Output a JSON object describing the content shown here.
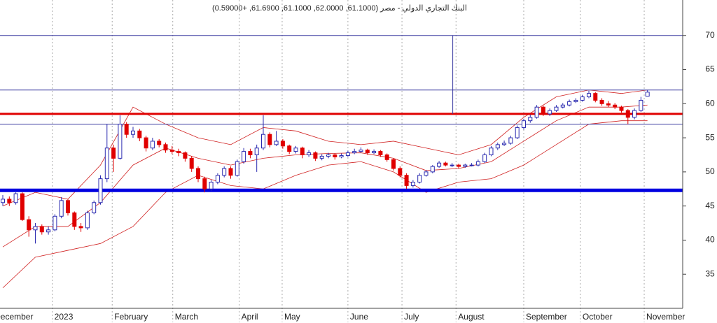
{
  "chart_data": {
    "type": "candlestick",
    "title": "البنك التجاري الدولي - مصر (61.1000, 62.0000, 61.1000, 61.6900, +0.59000)",
    "ylim": [
      30,
      75.2
    ],
    "yticks": [
      35,
      40,
      45,
      50,
      55,
      60,
      65,
      70
    ],
    "xlim": [
      -0.43,
      104.41
    ],
    "xticks": [
      {
        "value": -1.6,
        "label": "December"
      },
      {
        "value": 7.6,
        "label": "2023"
      },
      {
        "value": 16.8,
        "label": "February"
      },
      {
        "value": 26.1,
        "label": "March"
      },
      {
        "value": 36.3,
        "label": "April"
      },
      {
        "value": 42.9,
        "label": "May"
      },
      {
        "value": 53,
        "label": "June"
      },
      {
        "value": 61.3,
        "label": "July"
      },
      {
        "value": 69.6,
        "label": "August"
      },
      {
        "value": 80,
        "label": "September"
      },
      {
        "value": 88.7,
        "label": "October"
      },
      {
        "value": 98.5,
        "label": "November"
      }
    ],
    "up_color": "#2b2bb0",
    "down_color": "#e00000",
    "candles": [
      [
        45.5,
        46.6,
        45.0,
        46
      ],
      [
        46,
        46.4,
        45.0,
        45.5
      ],
      [
        45.5,
        47.0,
        45.2,
        46.8
      ],
      [
        46.8,
        47.0,
        42.8,
        43
      ],
      [
        43,
        43.5,
        40.5,
        41.5
      ],
      [
        41.5,
        42.5,
        39.5,
        42
      ],
      [
        42,
        42.3,
        40.8,
        41.2
      ],
      [
        41.2,
        42,
        40.8,
        41.5
      ],
      [
        41.5,
        43.8,
        41.3,
        43.5
      ],
      [
        43.5,
        46.3,
        43.2,
        45.8
      ],
      [
        45.8,
        46,
        43.6,
        44
      ],
      [
        44,
        44.2,
        41.5,
        42
      ],
      [
        42,
        42.5,
        41.2,
        41.8
      ],
      [
        41.8,
        44.3,
        41.5,
        44
      ],
      [
        44,
        45.8,
        43.8,
        45.5
      ],
      [
        45.5,
        49.5,
        45.2,
        49
      ],
      [
        49,
        57,
        48.5,
        53.5
      ],
      [
        53.5,
        54,
        50,
        52
      ],
      [
        52,
        58.3,
        51.8,
        57
      ],
      [
        57,
        57.3,
        55,
        55.5
      ],
      [
        55.5,
        56.6,
        55,
        56
      ],
      [
        56,
        56.3,
        54.5,
        55
      ],
      [
        55,
        55.3,
        53,
        53.5
      ],
      [
        53.5,
        55,
        53.2,
        54.5
      ],
      [
        54.5,
        54.8,
        53.6,
        54
      ],
      [
        54,
        54.3,
        52.8,
        53.2
      ],
      [
        53.2,
        53.8,
        52.6,
        53
      ],
      [
        53,
        53.4,
        52.3,
        52.8
      ],
      [
        52.8,
        53,
        51.5,
        52
      ],
      [
        52,
        52.3,
        50,
        50.5
      ],
      [
        50.5,
        50.8,
        48.5,
        49
      ],
      [
        49,
        49.3,
        47,
        47.5
      ],
      [
        47.5,
        48.8,
        47.2,
        48.5
      ],
      [
        48.5,
        49.8,
        48.2,
        49.5
      ],
      [
        49.5,
        50.8,
        49.2,
        50.5
      ],
      [
        50.5,
        50.8,
        49,
        49.5
      ],
      [
        49.5,
        51.8,
        49.3,
        51.5
      ],
      [
        51.5,
        53.5,
        51.2,
        53
      ],
      [
        53,
        53.4,
        52,
        52.5
      ],
      [
        52.5,
        54,
        50,
        53.5
      ],
      [
        53.5,
        58.3,
        53.2,
        55.5
      ],
      [
        55.5,
        55.8,
        53.6,
        54
      ],
      [
        54,
        56,
        53.8,
        54.5
      ],
      [
        54.5,
        54.8,
        53.4,
        53.8
      ],
      [
        53.8,
        54,
        52.6,
        53
      ],
      [
        53,
        53.8,
        52.7,
        53.5
      ],
      [
        53.5,
        53.7,
        52,
        52.5
      ],
      [
        52.5,
        53.2,
        52.2,
        52.8
      ],
      [
        52.8,
        53,
        51.6,
        52
      ],
      [
        52,
        52.6,
        51.7,
        52.3
      ],
      [
        52.3,
        52.8,
        52,
        52.5
      ],
      [
        52.5,
        52.7,
        51.8,
        52.2
      ],
      [
        52.2,
        52.7,
        52,
        52.4
      ],
      [
        52.4,
        53.1,
        52.2,
        52.8
      ],
      [
        52.8,
        53.4,
        52.6,
        53
      ],
      [
        53,
        53.6,
        52.8,
        53.2
      ],
      [
        53.2,
        53.4,
        52.5,
        52.8
      ],
      [
        52.8,
        53.3,
        52.6,
        53
      ],
      [
        53,
        53.2,
        52.2,
        52.5
      ],
      [
        52.5,
        52.7,
        51.5,
        51.8
      ],
      [
        51.8,
        52,
        50.2,
        50.5
      ],
      [
        50.5,
        50.8,
        49.2,
        49.5
      ],
      [
        49.5,
        49.8,
        47.5,
        48
      ],
      [
        48,
        48.8,
        47.7,
        48.5
      ],
      [
        48.5,
        49.8,
        48.3,
        49.5
      ],
      [
        49.5,
        50.3,
        49.3,
        50
      ],
      [
        50,
        51,
        49.8,
        50.8
      ],
      [
        50.8,
        51.6,
        50.6,
        51.3
      ],
      [
        51.3,
        51.5,
        50.8,
        51
      ],
      [
        51,
        51.3,
        50.7,
        51
      ],
      [
        51,
        51.2,
        50.5,
        50.8
      ],
      [
        50.8,
        51.2,
        50.6,
        51
      ],
      [
        51,
        51.3,
        50.8,
        51
      ],
      [
        51,
        51.8,
        50.8,
        51.5
      ],
      [
        51.5,
        52.8,
        51.3,
        52.5
      ],
      [
        52.5,
        53.8,
        52.3,
        53.5
      ],
      [
        53.5,
        54.3,
        53.2,
        54
      ],
      [
        54,
        54.6,
        53.8,
        54.2
      ],
      [
        54.2,
        55.3,
        54,
        55
      ],
      [
        55,
        56.8,
        54.8,
        56.5
      ],
      [
        56.5,
        57.8,
        56.2,
        57.5
      ],
      [
        57.5,
        58.4,
        57.2,
        58
      ],
      [
        58,
        59.8,
        57.8,
        59.5
      ],
      [
        59.5,
        59.7,
        58.2,
        58.5
      ],
      [
        58.5,
        59.3,
        58.2,
        59
      ],
      [
        59,
        59.8,
        58.8,
        59.5
      ],
      [
        59.5,
        60.1,
        59.3,
        59.8
      ],
      [
        59.8,
        60.6,
        59.6,
        60.3
      ],
      [
        60.3,
        60.8,
        60.1,
        60.5
      ],
      [
        60.5,
        61.3,
        60.3,
        61
      ],
      [
        61,
        61.9,
        60.8,
        61.5
      ],
      [
        61.5,
        61.7,
        60.2,
        60.5
      ],
      [
        60.5,
        60.8,
        59.7,
        60
      ],
      [
        60,
        60.4,
        59.5,
        59.8
      ],
      [
        59.8,
        60.1,
        59.2,
        59.5
      ],
      [
        59.5,
        59.7,
        58.7,
        59
      ],
      [
        59,
        59.2,
        57,
        58
      ],
      [
        58,
        59.3,
        57.7,
        59
      ],
      [
        59,
        61,
        58.8,
        60.5
      ],
      [
        61.1,
        62,
        61.1,
        61.69
      ]
    ],
    "bands": {
      "color": "#d02020",
      "x": [
        0,
        5,
        10,
        15,
        20,
        25,
        30,
        35,
        40,
        45,
        50,
        55,
        60,
        65,
        70,
        75,
        80,
        85,
        90,
        95,
        99
      ],
      "series": [
        {
          "values": [
            45,
            47,
            46,
            51,
            59.5,
            57,
            55,
            54,
            56.5,
            56,
            54.5,
            54,
            54.5,
            53.5,
            52.5,
            54,
            58,
            61,
            62,
            61.5,
            62
          ]
        },
        {
          "values": [
            39,
            42,
            42,
            45.5,
            51,
            53.5,
            52,
            51,
            52,
            52.5,
            52.7,
            52.8,
            52,
            50.2,
            50.5,
            51.5,
            54.5,
            57.5,
            59.5,
            59.5,
            59.8
          ]
        },
        {
          "values": [
            33,
            37.5,
            38.5,
            39.5,
            42,
            47,
            49.5,
            48,
            47.5,
            49.5,
            51,
            51.5,
            50,
            47,
            48.5,
            49,
            51,
            54,
            57,
            57.5,
            57.5
          ]
        }
      ]
    },
    "hlines": [
      {
        "value": 70,
        "color": "#3a3aa0",
        "width": 1
      },
      {
        "value": 62,
        "color": "#3a3aa0",
        "width": 1
      },
      {
        "value": 57,
        "color": "#3a3aa0",
        "width": 1
      },
      {
        "value": 58.5,
        "color": "#e00000",
        "width": 3
      },
      {
        "value": 47.3,
        "color": "#0000e0",
        "width": 5
      }
    ],
    "vline": {
      "x": 69.1,
      "from": 58.5,
      "to": 70,
      "color": "#3a3aa0"
    }
  }
}
